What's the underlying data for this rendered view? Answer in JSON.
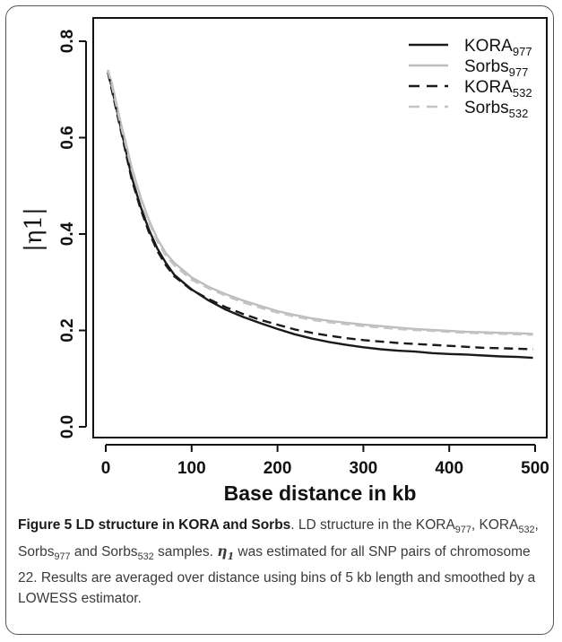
{
  "chart_data": {
    "type": "line",
    "xlabel": "Base distance in kb",
    "ylabel": "|η1|",
    "xlim": [
      0,
      500
    ],
    "ylim": [
      0.0,
      0.8
    ],
    "x_ticks": [
      "0",
      "100",
      "200",
      "300",
      "400",
      "500"
    ],
    "y_ticks": [
      "0.0",
      "0.2",
      "0.4",
      "0.6",
      "0.8"
    ],
    "legend_position": "top-right",
    "x": [
      2.5,
      7.5,
      12.5,
      17.5,
      22.5,
      30,
      40,
      50,
      60,
      70,
      80,
      90,
      100,
      120,
      140,
      160,
      180,
      200,
      220,
      240,
      260,
      280,
      300,
      320,
      340,
      360,
      380,
      400,
      420,
      440,
      460,
      480,
      497.5
    ],
    "series": [
      {
        "name": "KORA",
        "sub": "977",
        "color": "#1a1a1a",
        "dash": "solid",
        "values": [
          0.74,
          0.7,
          0.66,
          0.62,
          0.58,
          0.52,
          0.46,
          0.41,
          0.37,
          0.34,
          0.315,
          0.3,
          0.285,
          0.262,
          0.243,
          0.228,
          0.215,
          0.203,
          0.192,
          0.183,
          0.176,
          0.17,
          0.165,
          0.161,
          0.158,
          0.156,
          0.153,
          0.151,
          0.15,
          0.148,
          0.146,
          0.145,
          0.143
        ]
      },
      {
        "name": "Sorbs",
        "sub": "977",
        "color": "#bdbdbd",
        "dash": "solid",
        "values": [
          0.74,
          0.71,
          0.67,
          0.63,
          0.595,
          0.54,
          0.48,
          0.43,
          0.39,
          0.36,
          0.34,
          0.325,
          0.31,
          0.29,
          0.275,
          0.262,
          0.251,
          0.24,
          0.232,
          0.225,
          0.22,
          0.216,
          0.212,
          0.209,
          0.206,
          0.203,
          0.201,
          0.199,
          0.197,
          0.196,
          0.195,
          0.194,
          0.193
        ]
      },
      {
        "name": "KORA",
        "sub": "532",
        "color": "#1a1a1a",
        "dash": "dashed",
        "values": [
          0.735,
          0.695,
          0.655,
          0.615,
          0.575,
          0.515,
          0.455,
          0.405,
          0.365,
          0.335,
          0.312,
          0.298,
          0.284,
          0.265,
          0.248,
          0.234,
          0.222,
          0.212,
          0.202,
          0.195,
          0.189,
          0.184,
          0.18,
          0.177,
          0.174,
          0.172,
          0.17,
          0.168,
          0.166,
          0.164,
          0.163,
          0.162,
          0.161
        ]
      },
      {
        "name": "Sorbs",
        "sub": "532",
        "color": "#c4c4c4",
        "dash": "dashed",
        "values": [
          0.74,
          0.705,
          0.665,
          0.625,
          0.59,
          0.535,
          0.475,
          0.425,
          0.385,
          0.355,
          0.335,
          0.32,
          0.305,
          0.287,
          0.272,
          0.258,
          0.247,
          0.237,
          0.229,
          0.222,
          0.217,
          0.213,
          0.209,
          0.206,
          0.203,
          0.201,
          0.199,
          0.197,
          0.195,
          0.194,
          0.193,
          0.192,
          0.191
        ]
      }
    ]
  },
  "caption": {
    "title": "Figure 5 LD structure in KORA and Sorbs",
    "body_1": ". LD structure in the KORA",
    "sub_1": "977",
    "body_2": ", KORA",
    "sub_2": "532",
    "body_3": ", Sorbs",
    "sub_3": "977",
    "body_4": " and Sorbs",
    "sub_4": "532",
    "body_5": " samples. ",
    "eta_symbol": "η",
    "eta_sub": "1",
    "body_6": " was estimated for all SNP pairs of chromosome 22. Results are averaged over distance using bins of 5 kb length and smoothed by a LOWESS estimator."
  }
}
